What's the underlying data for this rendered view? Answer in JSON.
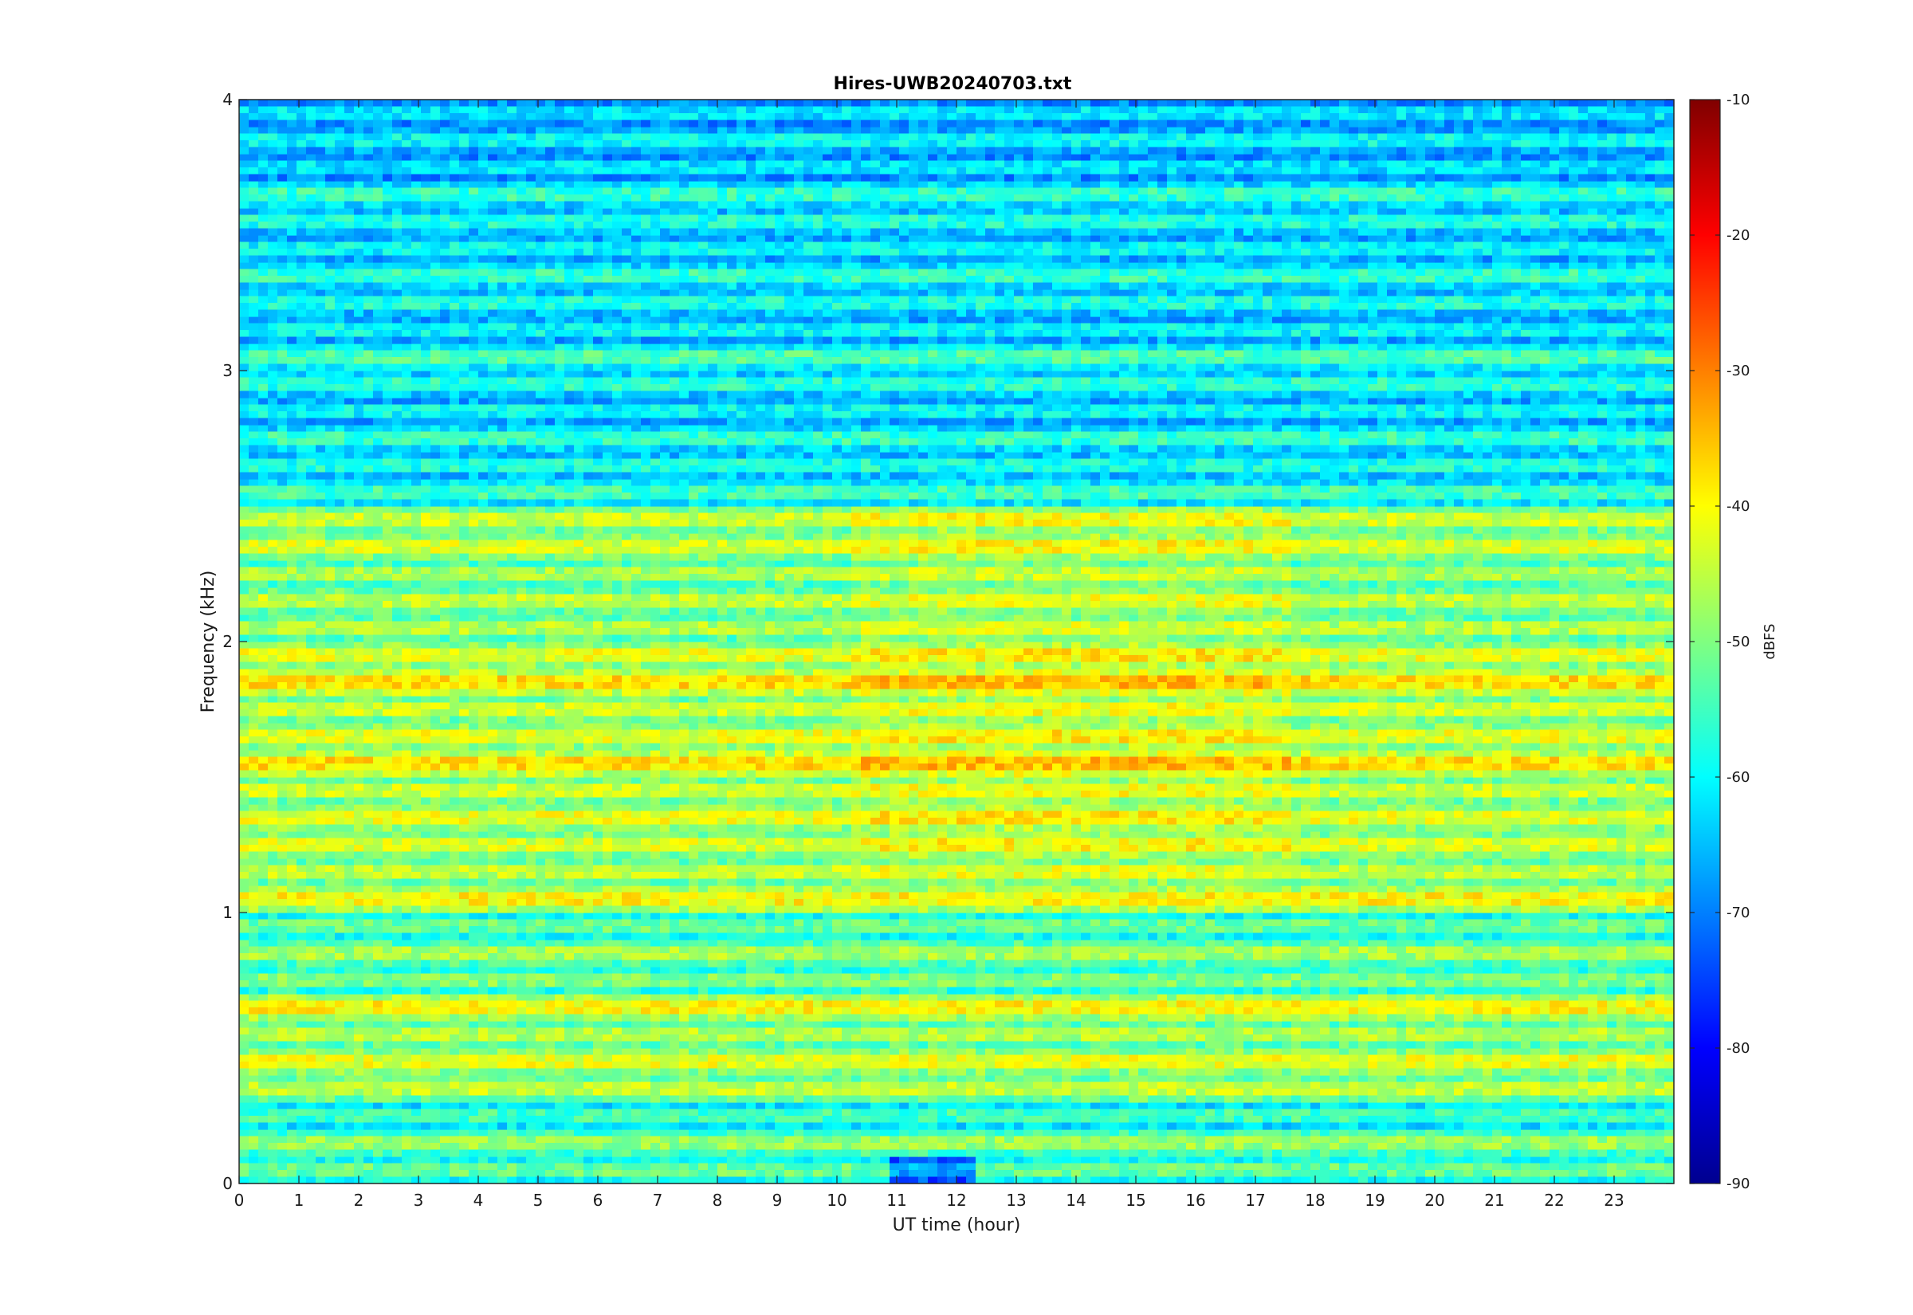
{
  "chart_data": {
    "type": "heatmap",
    "title": "Hires-UWB20240703.txt",
    "xlabel": "UT time (hour)",
    "ylabel": "Frequency (kHz)",
    "xlim": [
      0,
      24
    ],
    "ylim": [
      0,
      4
    ],
    "xticks": [
      0,
      1,
      2,
      3,
      4,
      5,
      6,
      7,
      8,
      9,
      10,
      11,
      12,
      13,
      14,
      15,
      16,
      17,
      18,
      19,
      20,
      21,
      22,
      23
    ],
    "yticks": [
      0,
      1,
      2,
      3,
      4
    ],
    "colorbar": {
      "label": "dBFS",
      "clim": [
        -90,
        -10
      ],
      "ticks": [
        -90,
        -80,
        -70,
        -60,
        -50,
        -40,
        -30,
        -20,
        -10
      ],
      "colormap": "jet"
    },
    "bands": [
      {
        "freq_khz": 0.05,
        "level_dbfs": -52
      },
      {
        "freq_khz": 0.15,
        "level_dbfs": -48
      },
      {
        "freq_khz": 0.25,
        "level_dbfs": -55
      },
      {
        "freq_khz": 0.35,
        "level_dbfs": -45
      },
      {
        "freq_khz": 0.45,
        "level_dbfs": -42
      },
      {
        "freq_khz": 0.55,
        "level_dbfs": -46
      },
      {
        "freq_khz": 0.65,
        "level_dbfs": -40
      },
      {
        "freq_khz": 0.75,
        "level_dbfs": -50
      },
      {
        "freq_khz": 0.85,
        "level_dbfs": -47
      },
      {
        "freq_khz": 0.95,
        "level_dbfs": -52
      },
      {
        "freq_khz": 1.05,
        "level_dbfs": -40
      },
      {
        "freq_khz": 1.15,
        "level_dbfs": -45
      },
      {
        "freq_khz": 1.25,
        "level_dbfs": -43
      },
      {
        "freq_khz": 1.35,
        "level_dbfs": -42
      },
      {
        "freq_khz": 1.45,
        "level_dbfs": -44
      },
      {
        "freq_khz": 1.55,
        "level_dbfs": -38
      },
      {
        "freq_khz": 1.65,
        "level_dbfs": -42
      },
      {
        "freq_khz": 1.75,
        "level_dbfs": -44
      },
      {
        "freq_khz": 1.85,
        "level_dbfs": -38
      },
      {
        "freq_khz": 1.95,
        "level_dbfs": -42
      },
      {
        "freq_khz": 2.05,
        "level_dbfs": -46
      },
      {
        "freq_khz": 2.15,
        "level_dbfs": -45
      },
      {
        "freq_khz": 2.25,
        "level_dbfs": -47
      },
      {
        "freq_khz": 2.35,
        "level_dbfs": -43
      },
      {
        "freq_khz": 2.45,
        "level_dbfs": -44
      },
      {
        "freq_khz": 2.55,
        "level_dbfs": -55
      },
      {
        "freq_khz": 2.65,
        "level_dbfs": -58
      },
      {
        "freq_khz": 2.75,
        "level_dbfs": -56
      },
      {
        "freq_khz": 2.85,
        "level_dbfs": -60
      },
      {
        "freq_khz": 2.95,
        "level_dbfs": -57
      },
      {
        "freq_khz": 3.05,
        "level_dbfs": -54
      },
      {
        "freq_khz": 3.15,
        "level_dbfs": -60
      },
      {
        "freq_khz": 3.25,
        "level_dbfs": -58
      },
      {
        "freq_khz": 3.35,
        "level_dbfs": -56
      },
      {
        "freq_khz": 3.45,
        "level_dbfs": -60
      },
      {
        "freq_khz": 3.55,
        "level_dbfs": -58
      },
      {
        "freq_khz": 3.65,
        "level_dbfs": -56
      },
      {
        "freq_khz": 3.75,
        "level_dbfs": -62
      },
      {
        "freq_khz": 3.85,
        "level_dbfs": -60
      },
      {
        "freq_khz": 3.95,
        "level_dbfs": -62
      }
    ],
    "grid": false,
    "legend": "none"
  }
}
